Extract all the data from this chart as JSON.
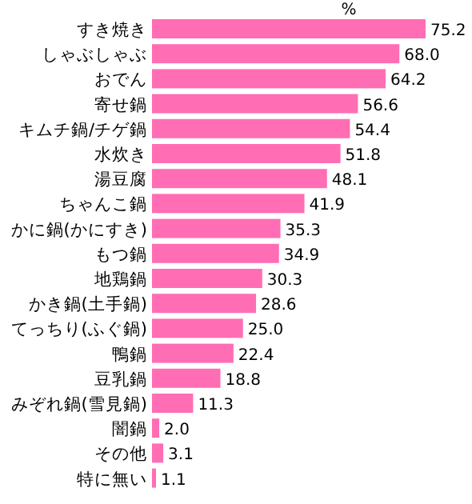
{
  "chart_data": {
    "type": "bar",
    "orientation": "horizontal",
    "xlabel": "%",
    "color": "#ff6eb4",
    "value_labels": [
      "75.2",
      "68.0",
      "64.2",
      "56.6",
      "54.4",
      "51.8",
      "48.1",
      "41.9",
      "35.3",
      "34.9",
      "30.3",
      "28.6",
      "25.0",
      "22.4",
      "18.8",
      "11.3",
      "2.0",
      "3.1",
      "1.1"
    ],
    "categories": [
      "すき焼き",
      "しゃぶしゃぶ",
      "おでん",
      "寄せ鍋",
      "キムチ鍋/チゲ鍋",
      "水炊き",
      "湯豆腐",
      "ちゃんこ鍋",
      "かに鍋(かにすき)",
      "もつ鍋",
      "地鶏鍋",
      "かき鍋(土手鍋)",
      "てっちり(ふぐ鍋)",
      "鴨鍋",
      "豆乳鍋",
      "みぞれ鍋(雪見鍋)",
      "闇鍋",
      "その他",
      "特に無い"
    ],
    "values": [
      75.2,
      68.0,
      64.2,
      56.6,
      54.4,
      51.8,
      48.1,
      41.9,
      35.3,
      34.9,
      30.3,
      28.6,
      25.0,
      22.4,
      18.8,
      11.3,
      2.0,
      3.1,
      1.1
    ]
  }
}
